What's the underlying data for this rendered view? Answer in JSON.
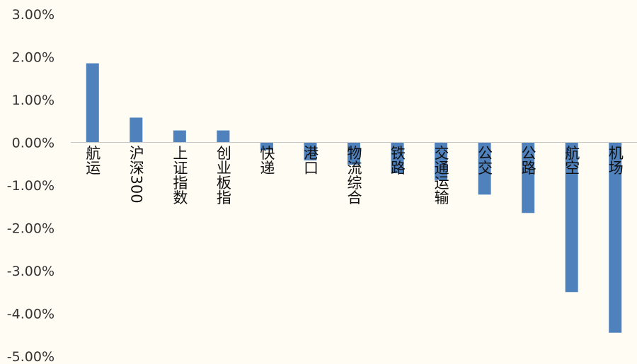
{
  "chart_data": {
    "type": "bar",
    "title": "",
    "xlabel": "",
    "ylabel": "",
    "ylim": [
      -0.05,
      0.03
    ],
    "y_ticks": [
      "3.00%",
      "2.00%",
      "1.00%",
      "0.00%",
      "-1.00%",
      "-2.00%",
      "-3.00%",
      "-4.00%",
      "-5.00%"
    ],
    "y_tick_values": [
      0.03,
      0.02,
      0.01,
      0.0,
      -0.01,
      -0.02,
      -0.03,
      -0.04,
      -0.05
    ],
    "categories": [
      "航运",
      "沪深300",
      "上证指数",
      "创业板指",
      "快递",
      "港口",
      "物流综合",
      "铁路",
      "交通运输",
      "公交",
      "公路",
      "航空",
      "机场"
    ],
    "values": [
      0.0185,
      0.0058,
      0.0028,
      0.0028,
      -0.0018,
      -0.0042,
      -0.0052,
      -0.0072,
      -0.0088,
      -0.0122,
      -0.0165,
      -0.035,
      -0.0445
    ],
    "bar_color": "#4f81bd",
    "grid": false,
    "legend": "none"
  }
}
